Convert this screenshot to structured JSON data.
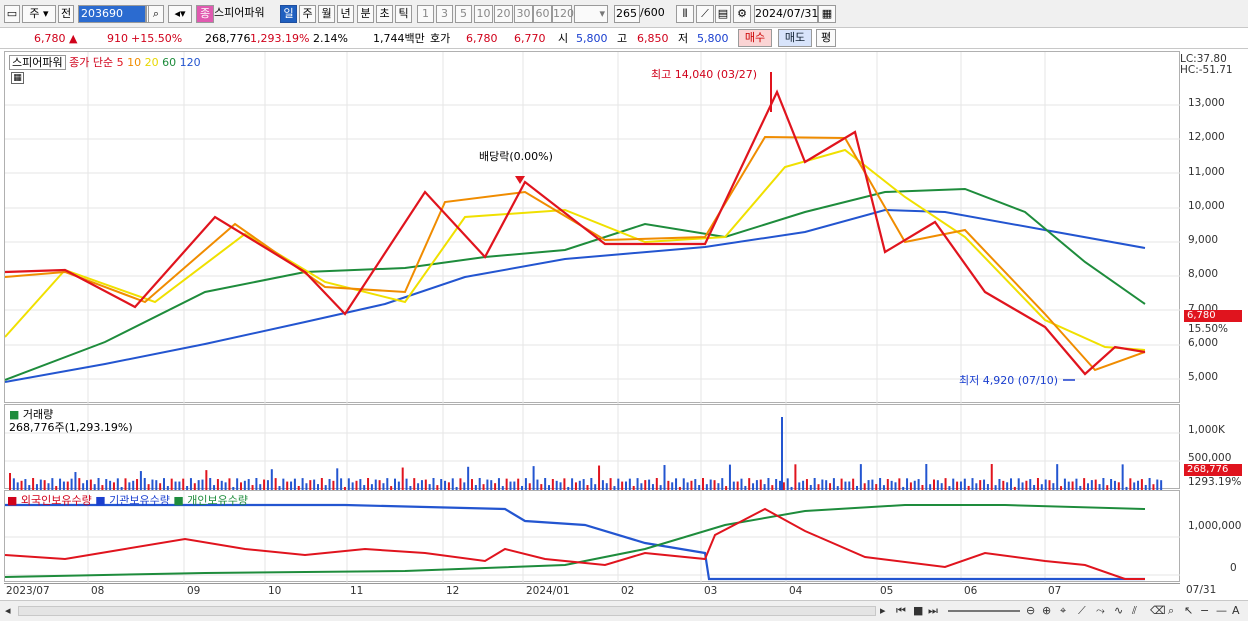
{
  "toolbar": {
    "market": "주",
    "prev": "전",
    "code": "203690",
    "badge": "종",
    "stock_name": "스피어파워",
    "periods": [
      "일",
      "주",
      "월",
      "년",
      "분",
      "초",
      "틱"
    ],
    "active_period": "일",
    "intervals": [
      "1",
      "3",
      "5",
      "10",
      "20",
      "30",
      "60",
      "120"
    ],
    "count": "265",
    "count_total": "/600",
    "date": "2024/07/31"
  },
  "info": {
    "price": "6,780",
    "change": "910",
    "change_pct": "+15.50%",
    "volume": "268,776",
    "volume_pct": "1,293.19%",
    "turnover": "2.14%",
    "amount": "1,744백만",
    "bid_label": "호가",
    "ask1": "6,780",
    "bid1": "6,770",
    "open_label": "시",
    "open": "5,800",
    "high_label": "고",
    "high": "6,850",
    "low_label": "저",
    "low": "5,800",
    "buy_label": "매수",
    "sell_label": "매도",
    "eval_label": "평"
  },
  "price_pane": {
    "legend_name": "스피어파워",
    "legend_ma": "종가 단순",
    "ma_periods": [
      "5",
      "10",
      "20",
      "60",
      "120"
    ],
    "ma_colors": [
      "#e0141e",
      "#f08c00",
      "#f0e000",
      "#1e8c3c",
      "#2355d0"
    ],
    "lc": "LC:37.80",
    "hc": "HC:-51.71",
    "high_note": "최고 14,040 (03/27)",
    "low_note": "최저 4,920 (07/10)",
    "dividend": "배당락(0.00%)",
    "price_tag": "6,780",
    "pct_tag": "15.50%",
    "y_labels": [
      "13,000",
      "12,000",
      "11,000",
      "10,000",
      "9,000",
      "8,000",
      "7,000",
      "6,000",
      "5,000"
    ]
  },
  "volume_pane": {
    "title": "거래량",
    "value": "268,776주(1,293.19%)",
    "y_labels": [
      "1,000K",
      "500,000"
    ],
    "tag": "268,776",
    "tag_pct": "1293.19%"
  },
  "holdings_pane": {
    "legend": [
      "외국인보유수량",
      "기관보유수량",
      "개인보유수량"
    ],
    "y_labels": [
      "1,000,000",
      "0"
    ]
  },
  "x_axis": {
    "labels": [
      "2023/07",
      "08",
      "09",
      "10",
      "11",
      "12",
      "2024/01",
      "02",
      "03",
      "04",
      "05",
      "06",
      "07"
    ],
    "right_label": "07/31"
  }
}
